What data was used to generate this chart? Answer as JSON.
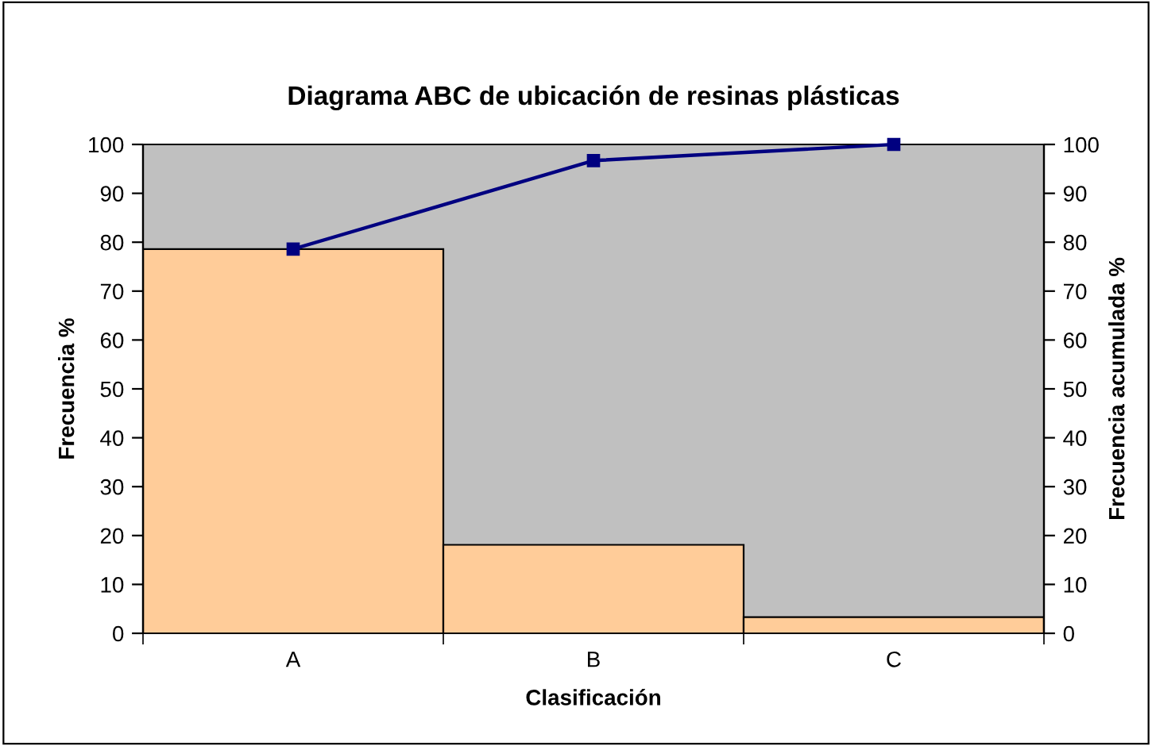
{
  "chart_data": {
    "type": "bar",
    "title": "Diagrama ABC de ubicación de resinas plásticas",
    "xlabel": "Clasificación",
    "ylabel": "Frecuencia %",
    "y2label": "Frecuencia acumulada %",
    "categories": [
      "A",
      "B",
      "C"
    ],
    "series": [
      {
        "color": "#ffcc99",
        "values": [
          78.6,
          18.1,
          3.3
        ]
      },
      {
        "type": "line",
        "axis": "y2",
        "color": "#000080",
        "values": [
          78.6,
          96.7,
          100
        ],
        "marker": "square"
      }
    ],
    "ylim": [
      0,
      100
    ],
    "yticks": [
      0,
      10,
      20,
      30,
      40,
      50,
      60,
      70,
      80,
      90,
      100
    ],
    "y2lim": [
      0,
      100
    ],
    "y2ticks": [
      0,
      10,
      20,
      30,
      40,
      50,
      60,
      70,
      80,
      90,
      100
    ],
    "grid": false,
    "legend": false
  }
}
